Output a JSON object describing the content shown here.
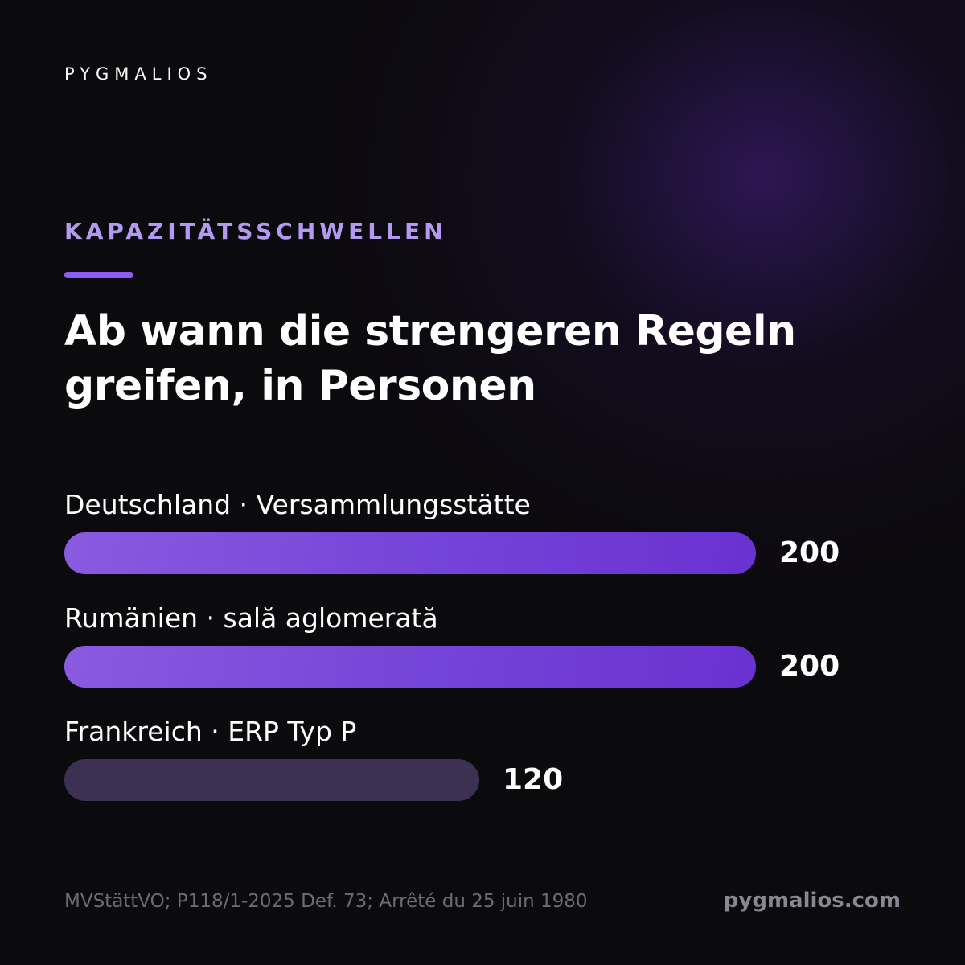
{
  "brand": {
    "logo_text": "PYGMALIOS",
    "website": "pygmalios.com"
  },
  "kicker": "KAPAZITÄTSSCHWELLEN",
  "headline": "Ab wann die strengeren Regeln greifen, in Personen",
  "colors": {
    "accent": "#8b5cf6",
    "kicker": "#b39af0",
    "bar_highlight_start": "#8a5ae0",
    "bar_highlight_end": "#6a31d1",
    "bar_muted": "#3c3152",
    "background": "#0b0a0d"
  },
  "chart_data": {
    "type": "bar",
    "orientation": "horizontal",
    "categories": [
      "Deutschland · Versammlungsstätte",
      "Rumänien · sală aglomerată",
      "Frankreich · ERP Typ P"
    ],
    "values": [
      200,
      200,
      120
    ],
    "value_labels": [
      "200",
      "200",
      "120"
    ],
    "styles": [
      "highlight",
      "highlight",
      "muted"
    ],
    "xlim": [
      0,
      200
    ],
    "grid": false,
    "title": "Ab wann die strengeren Regeln greifen, in Personen"
  },
  "footer": {
    "source": "MVStättVO; P118/1-2025 Def. 73; Arrêté du 25 juin 1980"
  }
}
